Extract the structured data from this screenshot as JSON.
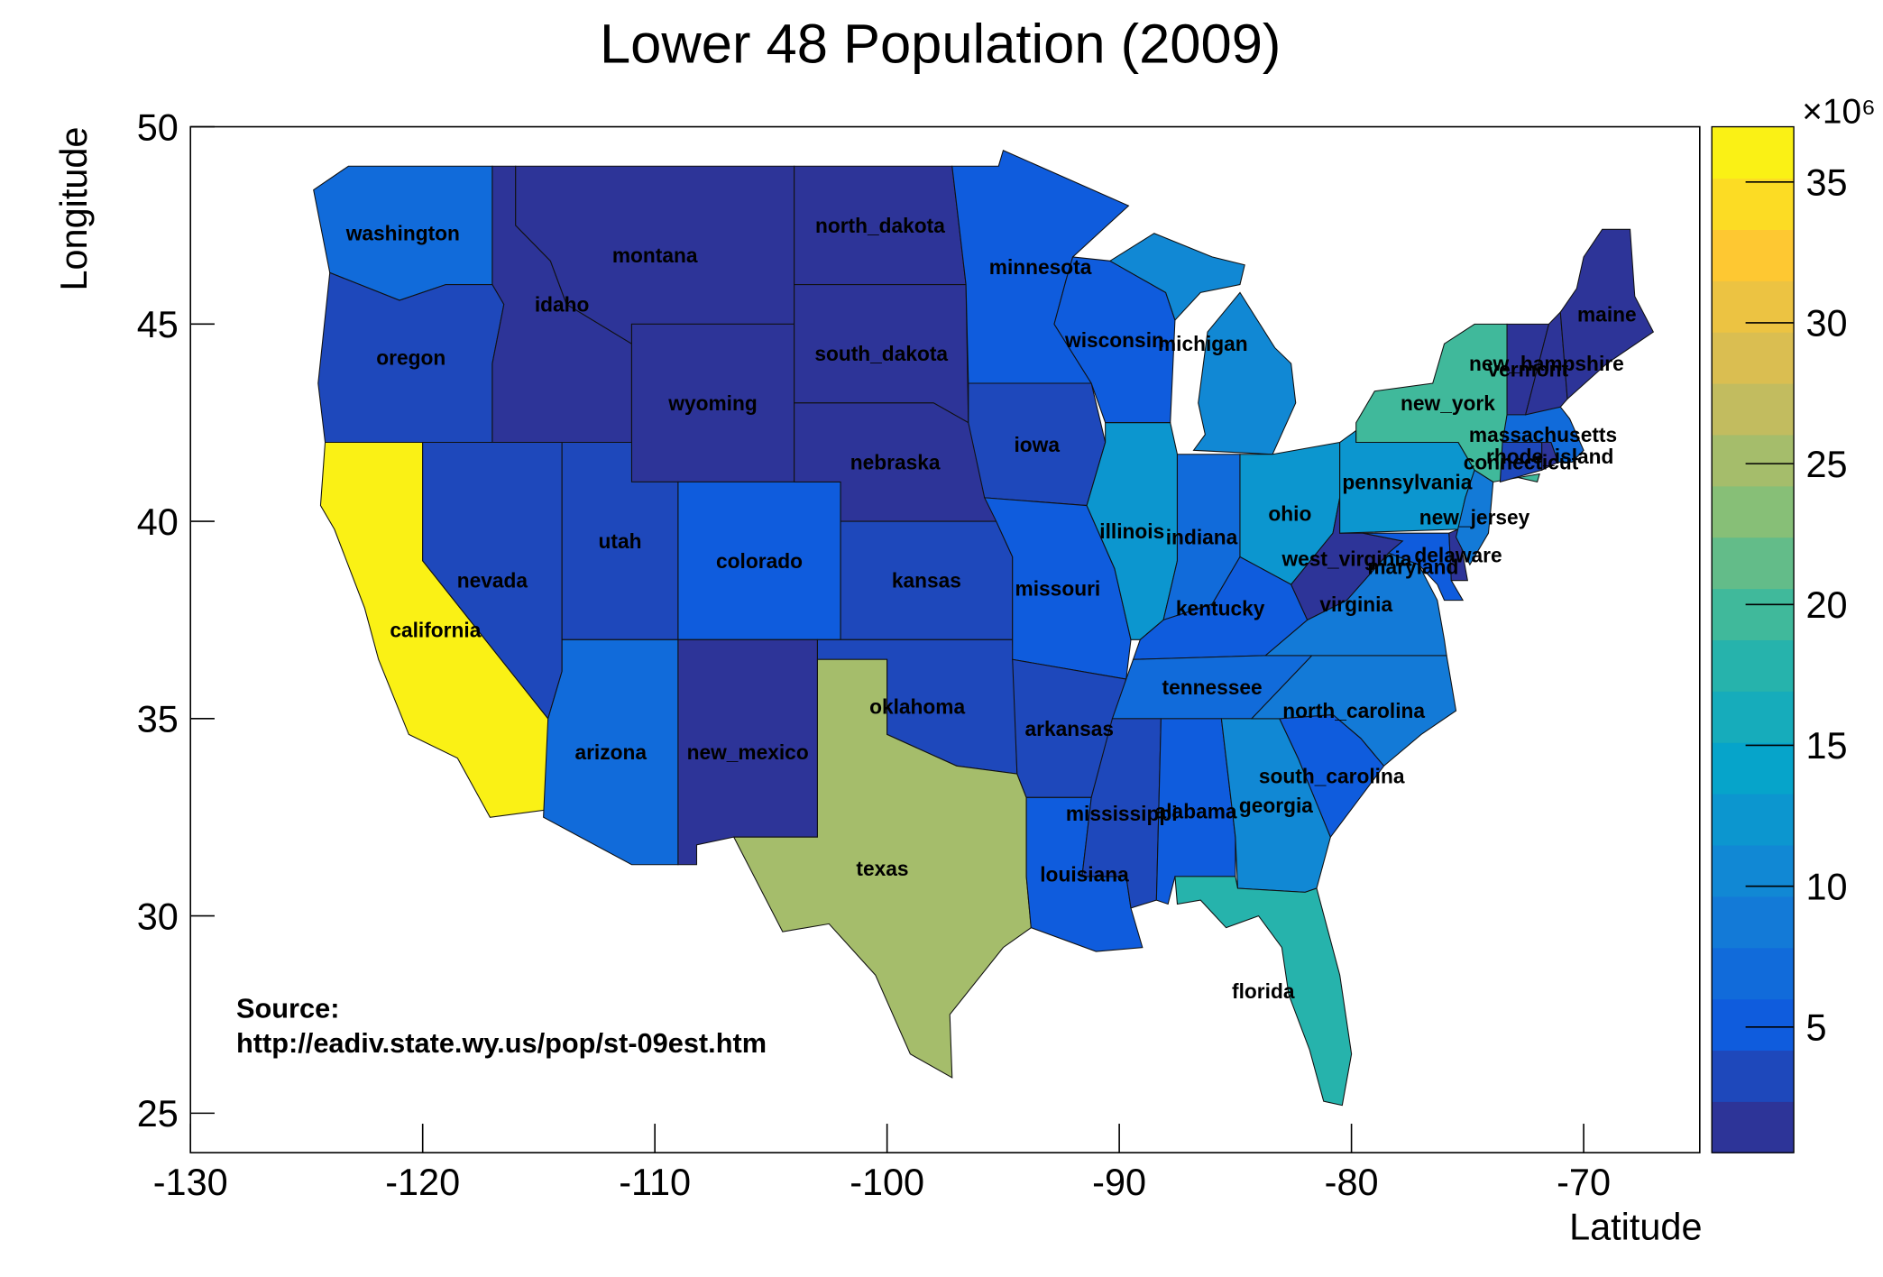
{
  "chart_data": {
    "type": "choropleth",
    "title": "Lower 48 Population (2009)",
    "x_label": "Latitude",
    "y_label": "Longitude",
    "xlim": [
      -130,
      -65
    ],
    "ylim": [
      24,
      50
    ],
    "xticks": [
      -130,
      -120,
      -110,
      -100,
      -90,
      -80,
      -70
    ],
    "yticks": [
      25,
      30,
      35,
      40,
      45,
      50
    ],
    "zlim": [
      0.54,
      36.96
    ],
    "zticks": [
      5,
      10,
      15,
      20,
      25,
      30,
      35
    ],
    "z_multiplier": "×10⁶",
    "contours": 20,
    "palette": [
      "#352a87",
      "#0f5cdd",
      "#1481d6",
      "#06a4ca",
      "#2eb7a4",
      "#87bf77",
      "#d1bb59",
      "#fec832",
      "#f9fb0e"
    ],
    "annotations": [
      "Source:",
      "http://eadiv.state.wy.us/pop/st-09est.htm"
    ],
    "categories": [
      "washington",
      "oregon",
      "california",
      "nevada",
      "idaho",
      "montana",
      "wyoming",
      "utah",
      "colorado",
      "arizona",
      "new_mexico",
      "north_dakota",
      "south_dakota",
      "nebraska",
      "kansas",
      "oklahoma",
      "texas",
      "minnesota",
      "iowa",
      "missouri",
      "arkansas",
      "louisiana",
      "wisconsin",
      "illinois",
      "michigan",
      "indiana",
      "ohio",
      "kentucky",
      "tennessee",
      "mississippi",
      "alabama",
      "georgia",
      "florida",
      "south_carolina",
      "north_carolina",
      "virginia",
      "west_virginia",
      "maryland",
      "delaware",
      "pennsylvania",
      "new_jersey",
      "new_york",
      "connecticut",
      "rhode_island",
      "massachusetts",
      "vermont",
      "new_hampshire",
      "maine"
    ],
    "values": [
      6.66,
      3.83,
      36.96,
      2.64,
      1.55,
      0.97,
      0.54,
      2.78,
      5.02,
      6.6,
      2.01,
      0.65,
      0.81,
      1.8,
      2.82,
      3.69,
      24.78,
      5.27,
      3.01,
      5.99,
      2.89,
      4.49,
      5.65,
      12.91,
      9.97,
      6.42,
      11.54,
      4.31,
      6.3,
      2.95,
      4.71,
      9.83,
      18.54,
      4.56,
      9.38,
      7.88,
      1.82,
      5.7,
      0.89,
      12.6,
      8.71,
      19.54,
      3.52,
      1.05,
      6.59,
      0.62,
      1.32,
      1.32
    ]
  }
}
